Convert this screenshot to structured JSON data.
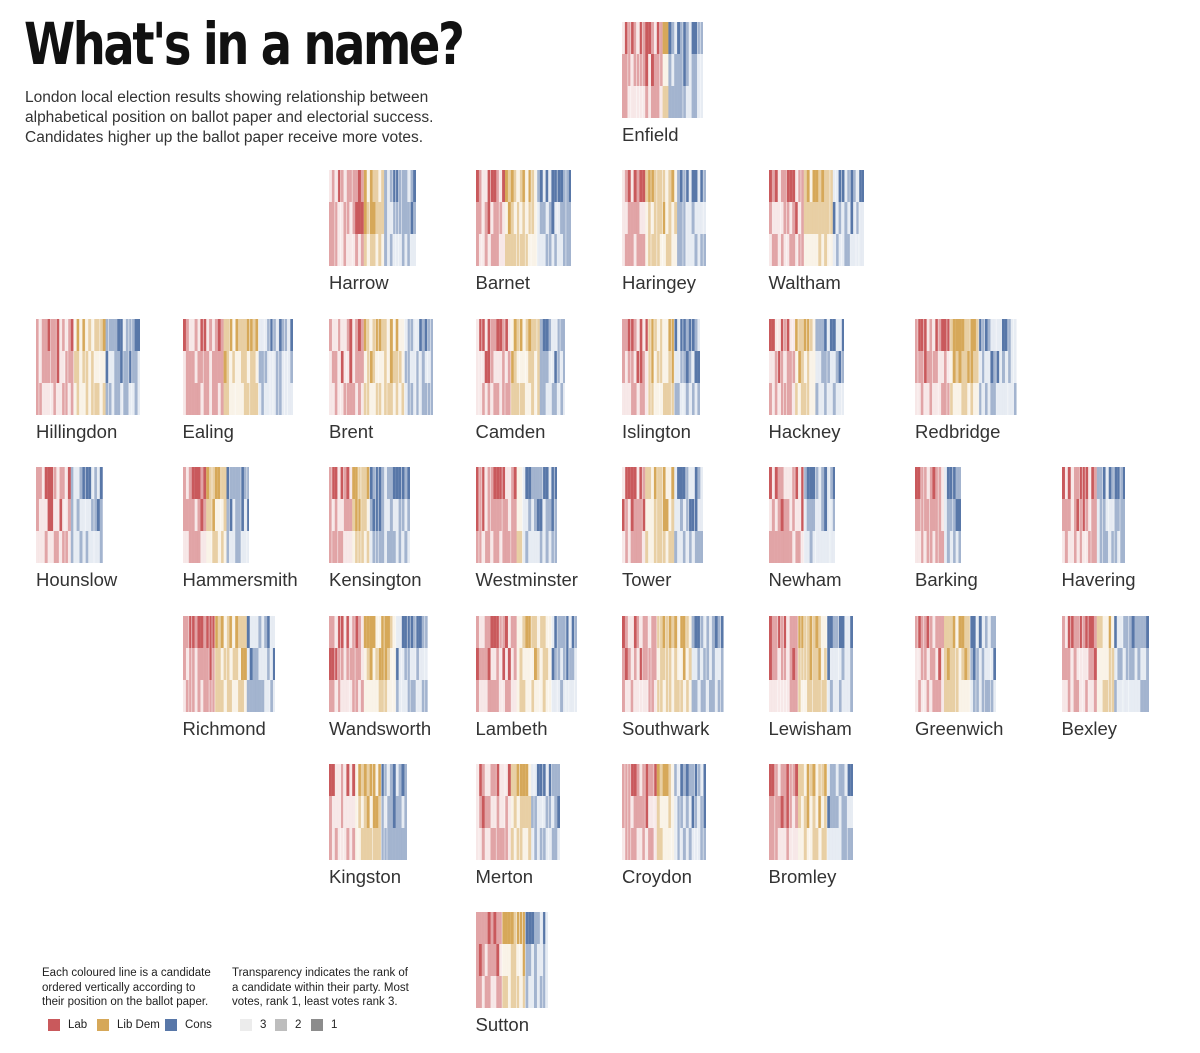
{
  "title": "What's in a name?",
  "subtitle": "London local election results showing relationship between alphabetical position on ballot paper and electorial success. Candidates higher up the ballot paper receive more votes.",
  "colors": {
    "Lab": "#c9595c",
    "LibDem": "#d6a859",
    "Cons": "#5877a8"
  },
  "legend": {
    "party_note": "Each coloured line is a candidate ordered vertically according to their position on the ballot paper.",
    "rank_note": "Transparency indicates the rank of a candidate within their party. Most votes, rank 1, least votes rank 3.",
    "parties": [
      {
        "label": "Lab",
        "color": "#c9595c"
      },
      {
        "label": "Lib Dem",
        "color": "#d6a859"
      },
      {
        "label": "Cons",
        "color": "#5877a8"
      }
    ],
    "ranks": [
      {
        "label": "3",
        "color": "#ececec"
      },
      {
        "label": "2",
        "color": "#bdbdbd"
      },
      {
        "label": "1",
        "color": "#8c8c8c"
      }
    ]
  },
  "chart_data": {
    "type": "heatmap",
    "series": [
      {
        "name": "Lab"
      },
      {
        "name": "Lib Dem"
      },
      {
        "name": "Cons"
      }
    ],
    "rank_levels": [
      1,
      2,
      3
    ],
    "boroughs": [
      {
        "name": "Enfield",
        "row": 0,
        "col": 4,
        "parties": {
          "Lab": 14,
          "LibDem": 2,
          "Cons": 12
        }
      },
      {
        "name": "Harrow",
        "row": 1,
        "col": 2,
        "parties": {
          "Lab": 12,
          "LibDem": 7,
          "Cons": 11
        }
      },
      {
        "name": "Barnet",
        "row": 1,
        "col": 3,
        "parties": {
          "Lab": 10,
          "LibDem": 11,
          "Cons": 12
        }
      },
      {
        "name": "Haringey",
        "row": 1,
        "col": 4,
        "parties": {
          "Lab": 8,
          "LibDem": 11,
          "Cons": 10
        }
      },
      {
        "name": "Waltham",
        "row": 1,
        "col": 5,
        "parties": {
          "Lab": 12,
          "LibDem": 10,
          "Cons": 11
        }
      },
      {
        "name": "Hillingdon",
        "row": 2,
        "col": 0,
        "parties": {
          "Lab": 13,
          "LibDem": 11,
          "Cons": 12
        }
      },
      {
        "name": "Ealing",
        "row": 2,
        "col": 1,
        "parties": {
          "Lab": 14,
          "LibDem": 12,
          "Cons": 12
        }
      },
      {
        "name": "Brent",
        "row": 2,
        "col": 2,
        "parties": {
          "Lab": 12,
          "LibDem": 14,
          "Cons": 10
        }
      },
      {
        "name": "Camden",
        "row": 2,
        "col": 3,
        "parties": {
          "Lab": 12,
          "LibDem": 10,
          "Cons": 9
        }
      },
      {
        "name": "Islington",
        "row": 2,
        "col": 4,
        "parties": {
          "Lab": 9,
          "LibDem": 9,
          "Cons": 9
        }
      },
      {
        "name": "Hackney",
        "row": 2,
        "col": 5,
        "parties": {
          "Lab": 9,
          "LibDem": 7,
          "Cons": 10
        }
      },
      {
        "name": "Redbridge",
        "row": 2,
        "col": 6,
        "parties": {
          "Lab": 12,
          "LibDem": 10,
          "Cons": 13
        }
      },
      {
        "name": "Hounslow",
        "row": 3,
        "col": 0,
        "parties": {
          "Lab": 12,
          "LibDem": 0,
          "Cons": 11
        }
      },
      {
        "name": "Hammersmith",
        "row": 3,
        "col": 1,
        "parties": {
          "Lab": 8,
          "LibDem": 7,
          "Cons": 8
        }
      },
      {
        "name": "Kensington",
        "row": 3,
        "col": 2,
        "parties": {
          "Lab": 8,
          "LibDem": 6,
          "Cons": 14
        }
      },
      {
        "name": "Westminster",
        "row": 3,
        "col": 3,
        "parties": {
          "Lab": 14,
          "LibDem": 2,
          "Cons": 12
        }
      },
      {
        "name": "Tower",
        "row": 3,
        "col": 4,
        "parties": {
          "Lab": 8,
          "LibDem": 10,
          "Cons": 10
        }
      },
      {
        "name": "Newham",
        "row": 3,
        "col": 5,
        "parties": {
          "Lab": 12,
          "LibDem": 0,
          "Cons": 11
        }
      },
      {
        "name": "Barking",
        "row": 3,
        "col": 6,
        "parties": {
          "Lab": 10,
          "LibDem": 0,
          "Cons": 6
        }
      },
      {
        "name": "Havering",
        "row": 3,
        "col": 7,
        "parties": {
          "Lab": 12,
          "LibDem": 0,
          "Cons": 10
        }
      },
      {
        "name": "Richmond",
        "row": 4,
        "col": 1,
        "parties": {
          "Lab": 11,
          "LibDem": 11,
          "Cons": 10
        }
      },
      {
        "name": "Wandsworth",
        "row": 4,
        "col": 2,
        "parties": {
          "Lab": 12,
          "LibDem": 11,
          "Cons": 11
        }
      },
      {
        "name": "Lambeth",
        "row": 4,
        "col": 3,
        "parties": {
          "Lab": 14,
          "LibDem": 12,
          "Cons": 9
        }
      },
      {
        "name": "Southwark",
        "row": 4,
        "col": 4,
        "parties": {
          "Lab": 12,
          "LibDem": 12,
          "Cons": 11
        }
      },
      {
        "name": "Lewisham",
        "row": 4,
        "col": 5,
        "parties": {
          "Lab": 10,
          "LibDem": 10,
          "Cons": 9
        }
      },
      {
        "name": "Greenwich",
        "row": 4,
        "col": 6,
        "parties": {
          "Lab": 10,
          "LibDem": 9,
          "Cons": 9
        }
      },
      {
        "name": "Bexley",
        "row": 4,
        "col": 7,
        "parties": {
          "Lab": 12,
          "LibDem": 6,
          "Cons": 12
        }
      },
      {
        "name": "Kingston",
        "row": 5,
        "col": 2,
        "parties": {
          "Lab": 9,
          "LibDem": 9,
          "Cons": 9
        }
      },
      {
        "name": "Merton",
        "row": 5,
        "col": 3,
        "parties": {
          "Lab": 12,
          "LibDem": 7,
          "Cons": 10
        }
      },
      {
        "name": "Croydon",
        "row": 5,
        "col": 4,
        "parties": {
          "Lab": 12,
          "LibDem": 6,
          "Cons": 11
        }
      },
      {
        "name": "Bromley",
        "row": 5,
        "col": 5,
        "parties": {
          "Lab": 10,
          "LibDem": 10,
          "Cons": 9
        }
      },
      {
        "name": "Sutton",
        "row": 6,
        "col": 3,
        "parties": {
          "Lab": 9,
          "LibDem": 8,
          "Cons": 8
        }
      }
    ]
  }
}
